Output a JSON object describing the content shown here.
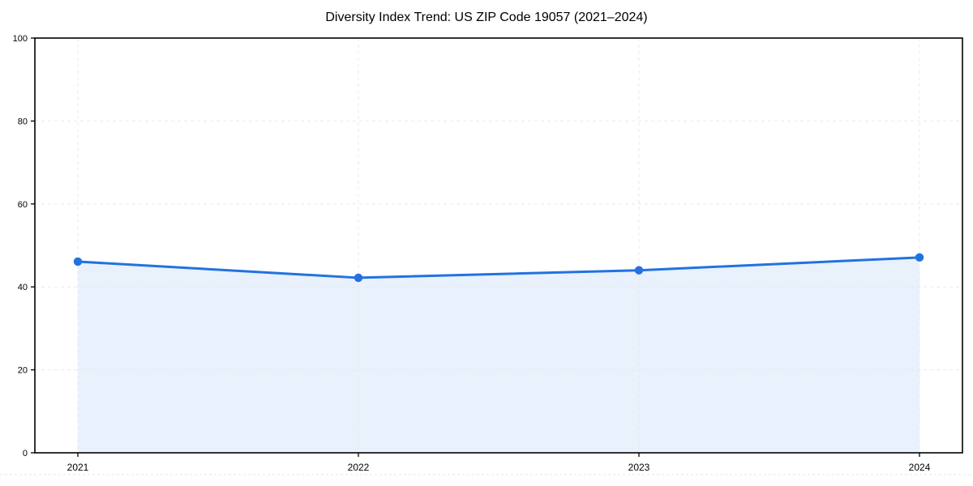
{
  "chart_data": {
    "type": "area",
    "title": "Diversity Index Trend: US ZIP Code 19057 (2021–2024)",
    "x": [
      "2021",
      "2022",
      "2023",
      "2024"
    ],
    "series": [
      {
        "name": "Diversity Index",
        "values": [
          46.1,
          42.2,
          44.0,
          47.1
        ]
      }
    ],
    "xlabel": "",
    "ylabel": "",
    "ylim": [
      0,
      100
    ],
    "yticks": [
      0,
      20,
      40,
      60,
      80,
      100
    ],
    "grid": "dashed, both axes",
    "legend": "none",
    "colors": {
      "line": "#2272E0",
      "marker": "#2272E0",
      "fill": "#E9F1FC",
      "grid": "#E9E9E9",
      "axis": "#000000",
      "background": "#FFFFFF",
      "bottom_edge_dashes": "#DCDCDC"
    }
  }
}
